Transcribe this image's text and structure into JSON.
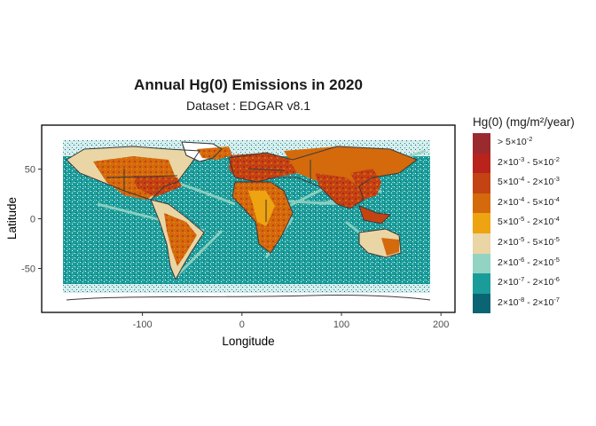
{
  "title": "Annual Hg(0) Emissions in 2020",
  "subtitle": "Dataset : EDGAR v8.1",
  "axes": {
    "xlabel": "Longitude",
    "ylabel": "Latitude",
    "xticks": [
      "-100",
      "0",
      "100",
      "200"
    ],
    "yticks": [
      "50",
      "0",
      "-50"
    ]
  },
  "legend": {
    "title": "Hg(0) (mg/m²/year)",
    "items": [
      {
        "id": "c9",
        "color": "#9b2a2f",
        "text": "> 5×10^-2"
      },
      {
        "id": "c8",
        "color": "#b8231b",
        "text": "2×10^-3 - 5×10^-2"
      },
      {
        "id": "c7",
        "color": "#c44312",
        "text": "5×10^-4 - 2×10^-3"
      },
      {
        "id": "c6",
        "color": "#d46a0c",
        "text": "2×10^-4 - 5×10^-4"
      },
      {
        "id": "c5",
        "color": "#eea310",
        "text": "5×10^-5 - 2×10^-4"
      },
      {
        "id": "c4",
        "color": "#ead5a5",
        "text": "2×10^-5 - 5×10^-5"
      },
      {
        "id": "c3",
        "color": "#93d3c3",
        "text": "2×10^-6 - 2×10^-5"
      },
      {
        "id": "c2",
        "color": "#1a9c9a",
        "text": "2×10^-7 - 2×10^-6"
      },
      {
        "id": "c1",
        "color": "#0a6473",
        "text": "2×10^-8 - 2×10^-7"
      }
    ]
  },
  "chart_data": {
    "type": "heatmap",
    "title": "Annual Hg(0) Emissions in 2020",
    "subtitle": "Dataset : EDGAR v8.1",
    "xlabel": "Longitude",
    "ylabel": "Latitude",
    "xlim": [
      -195,
      210
    ],
    "ylim": [
      -93,
      93
    ],
    "xticks": [
      -100,
      0,
      100,
      200
    ],
    "yticks": [
      50,
      0,
      -50
    ],
    "grid": false,
    "legend_position": "right",
    "data_extent": {
      "lon": [
        -180,
        180
      ],
      "lat": [
        -84,
        84
      ]
    }
  }
}
